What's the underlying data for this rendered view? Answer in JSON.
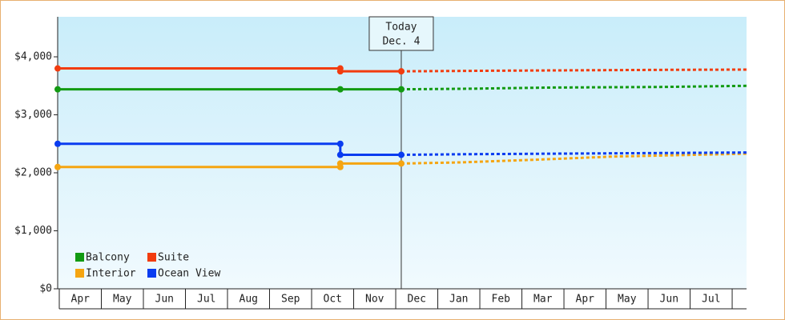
{
  "chart_data": {
    "type": "line",
    "categories": [
      "Apr",
      "May",
      "Jun",
      "Jul",
      "Aug",
      "Sep",
      "Oct",
      "Nov",
      "Dec",
      "Jan",
      "Feb",
      "Mar",
      "Apr",
      "May",
      "Jun",
      "Jul"
    ],
    "xlim": [
      0,
      16.38
    ],
    "ylim": [
      0,
      4690
    ],
    "yticks": [
      {
        "value": 0,
        "label": "$0"
      },
      {
        "value": 1000,
        "label": "$1,000"
      },
      {
        "value": 2000,
        "label": "$2,000"
      },
      {
        "value": 3000,
        "label": "$3,000"
      },
      {
        "value": 4000,
        "label": "$4,000"
      }
    ],
    "annotation": {
      "x": 8.17,
      "lines": [
        "Today",
        "Dec. 4"
      ]
    },
    "legend": "lower left",
    "series": [
      {
        "name": "Balcony",
        "color": "#129a12",
        "x": [
          0,
          6.72,
          8.17
        ],
        "values": [
          3440,
          3440,
          3440
        ],
        "forecast_x": [
          8.17,
          9.8,
          11.7,
          14.3,
          16.38
        ],
        "forecast_values": [
          3440,
          3450,
          3470,
          3480,
          3500
        ]
      },
      {
        "name": "Suite",
        "color": "#f23c0f",
        "x": [
          0,
          6.72,
          6.72,
          8.17
        ],
        "values": [
          3800,
          3800,
          3750,
          3750
        ],
        "forecast_x": [
          8.17,
          10.3,
          14.3,
          16.38
        ],
        "forecast_values": [
          3750,
          3760,
          3775,
          3780
        ]
      },
      {
        "name": "Interior",
        "color": "#f5a511",
        "x": [
          0,
          6.72,
          6.72,
          8.17
        ],
        "values": [
          2100,
          2100,
          2160,
          2160
        ],
        "forecast_x": [
          8.17,
          9.6,
          11.5,
          13.2,
          16.38
        ],
        "forecast_values": [
          2160,
          2180,
          2230,
          2280,
          2330
        ]
      },
      {
        "name": "Ocean View",
        "color": "#0a3cf0",
        "x": [
          0,
          6.72,
          6.72,
          8.17
        ],
        "values": [
          2500,
          2500,
          2310,
          2310
        ],
        "forecast_x": [
          8.17,
          9.6,
          11.8,
          16.38
        ],
        "forecast_values": [
          2310,
          2320,
          2330,
          2350
        ]
      }
    ]
  }
}
